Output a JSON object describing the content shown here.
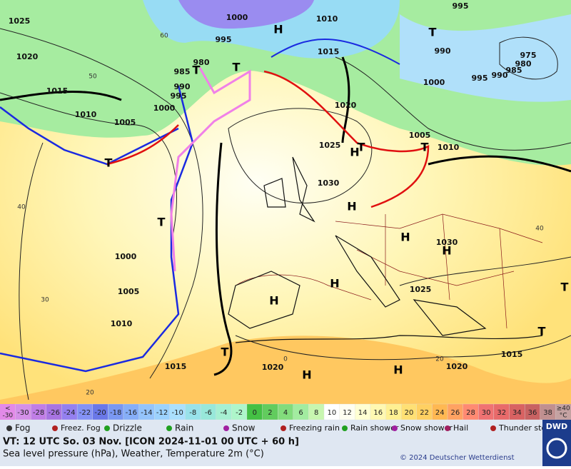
{
  "map": {
    "isobar_labels": [
      "1025",
      "1020",
      "1015",
      "1010",
      "1005",
      "1000",
      "995",
      "990",
      "985",
      "980",
      "995",
      "1000",
      "1010",
      "1015",
      "1020",
      "1025",
      "1030",
      "1005",
      "1010",
      "1000",
      "995",
      "990",
      "985",
      "980",
      "975",
      "990",
      "995",
      "1030",
      "1025",
      "1020",
      "1015",
      "1020",
      "1015",
      "1010",
      "1005",
      "1000"
    ],
    "pressure_centers": [
      "T",
      "T",
      "T",
      "T",
      "T",
      "T",
      "T",
      "T",
      "T",
      "T",
      "H",
      "H",
      "H",
      "H",
      "H",
      "H",
      "H",
      "H",
      "H"
    ],
    "temperature_labels": [
      "60",
      "50",
      "40",
      "30",
      "20",
      "40",
      "20",
      "0"
    ]
  },
  "temperature_scale": {
    "below": [
      "<",
      "-30"
    ],
    "values": [
      -30,
      -28,
      -26,
      -24,
      -22,
      -20,
      -18,
      -16,
      -14,
      -12,
      -10,
      -8,
      -6,
      -4,
      -2,
      0,
      2,
      4,
      6,
      8,
      10,
      12,
      14,
      16,
      18,
      20,
      22,
      24,
      26,
      28,
      30,
      32,
      34,
      36,
      38
    ],
    "colors": [
      "#d490e8",
      "#c07ee6",
      "#a874e2",
      "#9480f0",
      "#8492f6",
      "#6a78e8",
      "#7a98f2",
      "#86aef8",
      "#94c4fc",
      "#9cd2fe",
      "#aae0fe",
      "#98e2ea",
      "#98e8da",
      "#a6f0d2",
      "#aef6ca",
      "#44c044",
      "#62cc5e",
      "#82dc7c",
      "#a2eca0",
      "#c8f6b0",
      "#ffffff",
      "#fffff0",
      "#ffffd2",
      "#fff8b2",
      "#fff092",
      "#ffe074",
      "#ffd062",
      "#ffb852",
      "#ffa262",
      "#ff8a72",
      "#f07272",
      "#e86a6a",
      "#d86262",
      "#c86262",
      "#c09090"
    ],
    "above": [
      "≥40",
      "°C"
    ],
    "below_color": "#e28ae8",
    "above_color": "#c4a2a2"
  },
  "weather_legend": [
    "Fog",
    "Freez. Fog",
    "Drizzle",
    "Rain",
    "Snow",
    "Freezing rain",
    "Rain shower",
    "Snow shower",
    "Hail",
    "Thunder storm"
  ],
  "footer": {
    "valid_time": "VT: 12 UTC So.  03 Nov. [ICON 2024-11-01  00 UTC + 60 h]",
    "description": "Sea level pressure (hPa), Weather, Temperature 2m (°C)",
    "copyright": "© 2024 Deutscher Wetterdienst",
    "logo": "DWD"
  }
}
